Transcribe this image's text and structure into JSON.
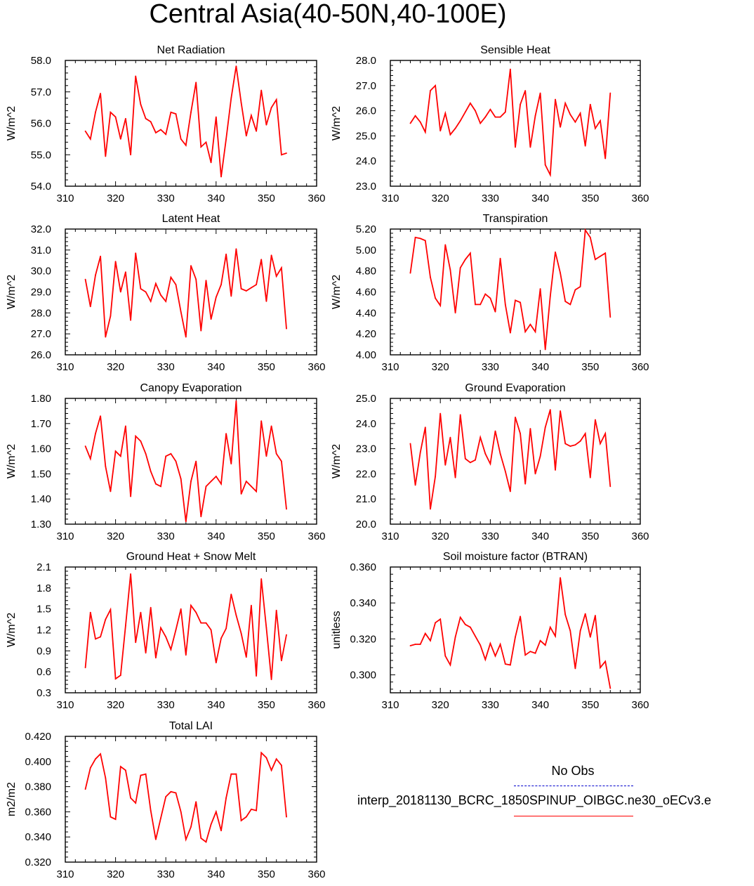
{
  "title": "Central Asia(40-50N,40-100E)",
  "legend": {
    "obs_label": "No Obs",
    "model_label": "interp_20181130_BCRC_1850SPINUP_OIBGC.ne30_oECv3.e",
    "obs_color": "#0000cc",
    "model_color": "#ff0000"
  },
  "chart_data": [
    {
      "type": "line",
      "title": "Net Radiation",
      "ylabel": "W/m^2",
      "xlim": [
        310,
        360
      ],
      "xticks": [
        310,
        320,
        330,
        340,
        350,
        360
      ],
      "ylim": [
        54.0,
        58.0
      ],
      "yticks": [
        "54.0",
        "55.0",
        "56.0",
        "57.0",
        "58.0"
      ],
      "x": [
        314,
        315,
        316,
        317,
        318,
        319,
        320,
        321,
        322,
        323,
        324,
        325,
        326,
        327,
        328,
        329,
        330,
        331,
        332,
        333,
        334,
        335,
        336,
        337,
        338,
        339,
        340,
        341,
        342,
        343,
        344,
        345,
        346,
        347,
        348,
        349,
        350,
        351,
        352,
        353,
        354
      ],
      "series": [
        {
          "name": "interp_20181130_BCRC_1850SPINUP_OIBGC.ne30_oECv3.e",
          "color": "#ff0000",
          "values": [
            55.75,
            55.5,
            56.35,
            56.95,
            54.95,
            56.35,
            56.2,
            55.5,
            56.15,
            55.0,
            57.5,
            56.6,
            56.15,
            56.05,
            55.7,
            55.8,
            55.65,
            56.35,
            56.3,
            55.5,
            55.3,
            56.35,
            57.3,
            55.25,
            55.4,
            54.75,
            56.2,
            54.3,
            55.5,
            56.8,
            57.82,
            56.65,
            55.6,
            56.25,
            55.75,
            57.05,
            55.95,
            56.5,
            56.75,
            55.0,
            55.05
          ]
        }
      ]
    },
    {
      "type": "line",
      "title": "Sensible Heat",
      "ylabel": "W/m^2",
      "xlim": [
        310,
        360
      ],
      "xticks": [
        310,
        320,
        330,
        340,
        350,
        360
      ],
      "ylim": [
        23.0,
        28.0
      ],
      "yticks": [
        "23.0",
        "24.0",
        "25.0",
        "26.0",
        "27.0",
        "28.0"
      ],
      "x": [
        314,
        315,
        316,
        317,
        318,
        319,
        320,
        321,
        322,
        323,
        324,
        325,
        326,
        327,
        328,
        329,
        330,
        331,
        332,
        333,
        334,
        335,
        336,
        337,
        338,
        339,
        340,
        341,
        342,
        343,
        344,
        345,
        346,
        347,
        348,
        349,
        350,
        351,
        352,
        353,
        354
      ],
      "series": [
        {
          "name": "interp_20181130_BCRC_1850SPINUP_OIBGC.ne30_oECv3.e",
          "color": "#ff0000",
          "values": [
            25.5,
            25.8,
            25.55,
            25.15,
            26.8,
            27.0,
            25.2,
            25.9,
            25.05,
            25.3,
            25.6,
            25.95,
            26.3,
            26.0,
            25.5,
            25.75,
            26.05,
            25.75,
            25.75,
            25.95,
            27.65,
            24.55,
            26.25,
            26.8,
            24.55,
            25.8,
            26.7,
            23.85,
            23.45,
            26.45,
            25.35,
            26.3,
            25.85,
            25.55,
            25.9,
            24.6,
            26.25,
            25.3,
            25.6,
            24.1,
            26.7
          ]
        }
      ]
    },
    {
      "type": "line",
      "title": "Latent Heat",
      "ylabel": "W/m^2",
      "xlim": [
        310,
        360
      ],
      "xticks": [
        310,
        320,
        330,
        340,
        350,
        360
      ],
      "ylim": [
        26.0,
        32.0
      ],
      "yticks": [
        "26.0",
        "27.0",
        "28.0",
        "29.0",
        "30.0",
        "31.0",
        "32.0"
      ],
      "x": [
        314,
        315,
        316,
        317,
        318,
        319,
        320,
        321,
        322,
        323,
        324,
        325,
        326,
        327,
        328,
        329,
        330,
        331,
        332,
        333,
        334,
        335,
        336,
        337,
        338,
        339,
        340,
        341,
        342,
        343,
        344,
        345,
        346,
        347,
        348,
        349,
        350,
        351,
        352,
        353,
        354
      ],
      "series": [
        {
          "name": "interp_20181130_BCRC_1850SPINUP_OIBGC.ne30_oECv3.e",
          "color": "#ff0000",
          "values": [
            29.6,
            28.3,
            29.8,
            30.7,
            26.85,
            27.85,
            30.45,
            29.0,
            29.95,
            27.65,
            30.85,
            29.15,
            29.0,
            28.55,
            29.4,
            28.85,
            28.55,
            29.7,
            29.35,
            28.05,
            26.85,
            30.25,
            29.6,
            27.15,
            29.55,
            27.7,
            28.75,
            29.35,
            30.8,
            28.8,
            31.05,
            29.15,
            29.05,
            29.2,
            29.35,
            30.55,
            28.55,
            30.75,
            29.75,
            30.15,
            27.25
          ]
        }
      ]
    },
    {
      "type": "line",
      "title": "Transpiration",
      "ylabel": "W/m^2",
      "xlim": [
        310,
        360
      ],
      "xticks": [
        310,
        320,
        330,
        340,
        350,
        360
      ],
      "ylim": [
        4.0,
        5.2
      ],
      "yticks": [
        "4.00",
        "4.20",
        "4.40",
        "4.60",
        "4.80",
        "5.00",
        "5.20"
      ],
      "x": [
        314,
        315,
        316,
        317,
        318,
        319,
        320,
        321,
        322,
        323,
        324,
        325,
        326,
        327,
        328,
        329,
        330,
        331,
        332,
        333,
        334,
        335,
        336,
        337,
        338,
        339,
        340,
        341,
        342,
        343,
        344,
        345,
        346,
        347,
        348,
        349,
        350,
        351,
        352,
        353,
        354
      ],
      "series": [
        {
          "name": "interp_20181130_BCRC_1850SPINUP_OIBGC.ne30_oECv3.e",
          "color": "#ff0000",
          "values": [
            4.78,
            5.12,
            5.11,
            5.09,
            4.74,
            4.54,
            4.47,
            5.05,
            4.81,
            4.4,
            4.83,
            4.91,
            4.97,
            4.48,
            4.48,
            4.58,
            4.54,
            4.41,
            4.92,
            4.48,
            4.21,
            4.52,
            4.5,
            4.22,
            4.29,
            4.22,
            4.63,
            4.05,
            4.56,
            4.98,
            4.78,
            4.51,
            4.48,
            4.62,
            4.65,
            5.19,
            5.12,
            4.91,
            4.94,
            4.97,
            4.36
          ]
        }
      ]
    },
    {
      "type": "line",
      "title": "Canopy Evaporation",
      "ylabel": "W/m^2",
      "xlim": [
        310,
        360
      ],
      "xticks": [
        310,
        320,
        330,
        340,
        350,
        360
      ],
      "ylim": [
        1.3,
        1.8
      ],
      "yticks": [
        "1.30",
        "1.40",
        "1.50",
        "1.60",
        "1.70",
        "1.80"
      ],
      "x": [
        314,
        315,
        316,
        317,
        318,
        319,
        320,
        321,
        322,
        323,
        324,
        325,
        326,
        327,
        328,
        329,
        330,
        331,
        332,
        333,
        334,
        335,
        336,
        337,
        338,
        339,
        340,
        341,
        342,
        343,
        344,
        345,
        346,
        347,
        348,
        349,
        350,
        351,
        352,
        353,
        354
      ],
      "series": [
        {
          "name": "interp_20181130_BCRC_1850SPINUP_OIBGC.ne30_oECv3.e",
          "color": "#ff0000",
          "values": [
            1.61,
            1.56,
            1.66,
            1.73,
            1.53,
            1.43,
            1.59,
            1.57,
            1.69,
            1.41,
            1.65,
            1.63,
            1.58,
            1.51,
            1.46,
            1.45,
            1.57,
            1.58,
            1.55,
            1.48,
            1.31,
            1.47,
            1.55,
            1.33,
            1.45,
            1.47,
            1.49,
            1.46,
            1.66,
            1.54,
            1.79,
            1.42,
            1.47,
            1.45,
            1.43,
            1.71,
            1.57,
            1.69,
            1.58,
            1.55,
            1.36
          ]
        }
      ]
    },
    {
      "type": "line",
      "title": "Ground Evaporation",
      "ylabel": "W/m^2",
      "xlim": [
        310,
        360
      ],
      "xticks": [
        310,
        320,
        330,
        340,
        350,
        360
      ],
      "ylim": [
        20.0,
        25.0
      ],
      "yticks": [
        "20.0",
        "21.0",
        "22.0",
        "23.0",
        "24.0",
        "25.0"
      ],
      "x": [
        314,
        315,
        316,
        317,
        318,
        319,
        320,
        321,
        322,
        323,
        324,
        325,
        326,
        327,
        328,
        329,
        330,
        331,
        332,
        333,
        334,
        335,
        336,
        337,
        338,
        339,
        340,
        341,
        342,
        343,
        344,
        345,
        346,
        347,
        348,
        349,
        350,
        351,
        352,
        353,
        354
      ],
      "series": [
        {
          "name": "interp_20181130_BCRC_1850SPINUP_OIBGC.ne30_oECv3.e",
          "color": "#ff0000",
          "values": [
            23.2,
            21.55,
            22.85,
            23.85,
            20.6,
            21.9,
            24.4,
            22.35,
            23.45,
            21.85,
            24.35,
            22.6,
            22.45,
            22.55,
            23.45,
            22.8,
            22.4,
            23.7,
            22.8,
            22.1,
            21.3,
            24.25,
            23.6,
            21.6,
            23.8,
            22.0,
            22.7,
            23.85,
            24.55,
            22.15,
            24.5,
            23.2,
            23.1,
            23.15,
            23.3,
            23.6,
            21.85,
            24.15,
            23.2,
            23.6,
            21.5
          ]
        }
      ]
    },
    {
      "type": "line",
      "title": "Ground Heat + Snow Melt",
      "ylabel": "W/m^2",
      "xlim": [
        310,
        360
      ],
      "xticks": [
        310,
        320,
        330,
        340,
        350,
        360
      ],
      "ylim": [
        0.3,
        2.1
      ],
      "yticks": [
        "0.3",
        "0.6",
        "0.9",
        "1.2",
        "1.5",
        "1.8",
        "2.1"
      ],
      "x": [
        314,
        315,
        316,
        317,
        318,
        319,
        320,
        321,
        322,
        323,
        324,
        325,
        326,
        327,
        328,
        329,
        330,
        331,
        332,
        333,
        334,
        335,
        336,
        337,
        338,
        339,
        340,
        341,
        342,
        343,
        344,
        345,
        346,
        347,
        348,
        349,
        350,
        351,
        352,
        353,
        354
      ],
      "series": [
        {
          "name": "interp_20181130_BCRC_1850SPINUP_OIBGC.ne30_oECv3.e",
          "color": "#ff0000",
          "values": [
            0.66,
            1.45,
            1.07,
            1.1,
            1.35,
            1.49,
            0.5,
            0.55,
            1.26,
            2.0,
            1.02,
            1.45,
            0.87,
            1.52,
            0.8,
            1.23,
            1.1,
            0.92,
            1.2,
            1.5,
            0.84,
            1.55,
            1.45,
            1.3,
            1.3,
            1.2,
            0.73,
            1.08,
            1.22,
            1.71,
            1.41,
            1.15,
            0.81,
            1.55,
            0.54,
            1.93,
            1.23,
            0.49,
            1.48,
            0.76,
            1.13
          ]
        }
      ]
    },
    {
      "type": "line",
      "title": "Soil moisture factor (BTRAN)",
      "ylabel": "unitless",
      "xlim": [
        310,
        360
      ],
      "xticks": [
        310,
        320,
        330,
        340,
        350,
        360
      ],
      "ylim": [
        0.29,
        0.36
      ],
      "yticks": [
        "0.300",
        "0.320",
        "0.340",
        "0.360"
      ],
      "ytick_values": [
        0.3,
        0.32,
        0.34,
        0.36
      ],
      "x": [
        314,
        315,
        316,
        317,
        318,
        319,
        320,
        321,
        322,
        323,
        324,
        325,
        326,
        327,
        328,
        329,
        330,
        331,
        332,
        333,
        334,
        335,
        336,
        337,
        338,
        339,
        340,
        341,
        342,
        343,
        344,
        345,
        346,
        347,
        348,
        349,
        350,
        351,
        352,
        353,
        354
      ],
      "series": [
        {
          "name": "interp_20181130_BCRC_1850SPINUP_OIBGC.ne30_oECv3.e",
          "color": "#ff0000",
          "values": [
            0.3162,
            0.317,
            0.317,
            0.323,
            0.319,
            0.329,
            0.331,
            0.3105,
            0.3055,
            0.321,
            0.332,
            0.328,
            0.3265,
            0.3215,
            0.3165,
            0.3085,
            0.3175,
            0.3105,
            0.317,
            0.306,
            0.3055,
            0.321,
            0.3325,
            0.311,
            0.313,
            0.312,
            0.319,
            0.3165,
            0.3265,
            0.3215,
            0.354,
            0.3335,
            0.3245,
            0.3035,
            0.3245,
            0.334,
            0.321,
            0.333,
            0.304,
            0.3075,
            0.2925
          ]
        }
      ]
    },
    {
      "type": "line",
      "title": "Total LAI",
      "ylabel": "m2/m2",
      "xlim": [
        310,
        360
      ],
      "xticks": [
        310,
        320,
        330,
        340,
        350,
        360
      ],
      "ylim": [
        0.32,
        0.42
      ],
      "yticks": [
        "0.320",
        "0.340",
        "0.360",
        "0.380",
        "0.400",
        "0.420"
      ],
      "x": [
        314,
        315,
        316,
        317,
        318,
        319,
        320,
        321,
        322,
        323,
        324,
        325,
        326,
        327,
        328,
        329,
        330,
        331,
        332,
        333,
        334,
        335,
        336,
        337,
        338,
        339,
        340,
        341,
        342,
        343,
        344,
        345,
        346,
        347,
        348,
        349,
        350,
        351,
        352,
        353,
        354
      ],
      "series": [
        {
          "name": "interp_20181130_BCRC_1850SPINUP_OIBGC.ne30_oECv3.e",
          "color": "#ff0000",
          "values": [
            0.378,
            0.395,
            0.402,
            0.406,
            0.387,
            0.356,
            0.354,
            0.396,
            0.393,
            0.371,
            0.367,
            0.389,
            0.39,
            0.361,
            0.338,
            0.355,
            0.372,
            0.376,
            0.375,
            0.36,
            0.338,
            0.348,
            0.368,
            0.339,
            0.336,
            0.35,
            0.36,
            0.345,
            0.371,
            0.39,
            0.39,
            0.353,
            0.356,
            0.362,
            0.361,
            0.407,
            0.403,
            0.393,
            0.402,
            0.397,
            0.356
          ]
        }
      ]
    }
  ]
}
